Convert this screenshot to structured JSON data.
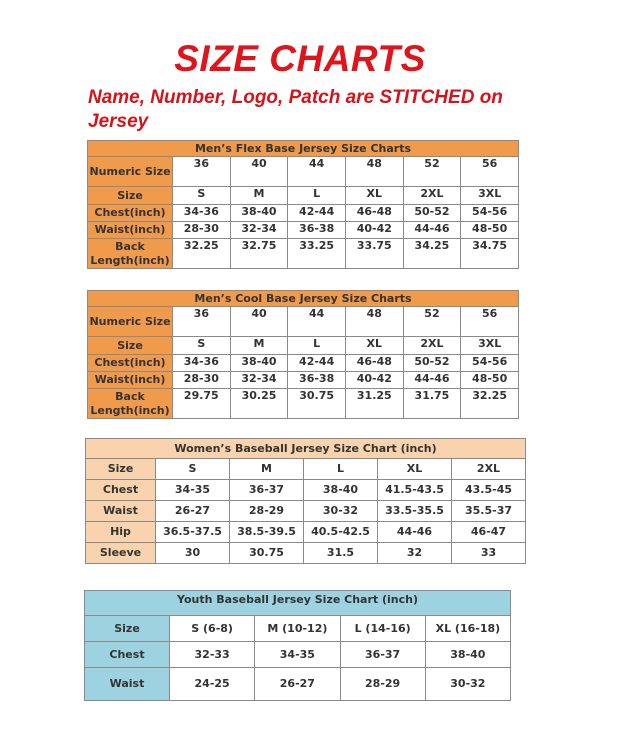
{
  "title": "SIZE CHARTS",
  "subtitle": "Name, Number, Logo, Patch are STITCHED on Jersey",
  "colors": {
    "title_red": "#e0141b",
    "mens_header": "#f09a4c",
    "womens_header": "#f8d3ad",
    "youth_header": "#9dd3e1"
  },
  "tables": [
    {
      "caption": "Men’s Flex Base Jersey Size Charts",
      "rows": [
        {
          "label": "Numeric Size",
          "values": [
            "36",
            "40",
            "44",
            "48",
            "52",
            "56"
          ]
        },
        {
          "label": "Size",
          "values": [
            "S",
            "M",
            "L",
            "XL",
            "2XL",
            "3XL"
          ]
        },
        {
          "label": "Chest(inch)",
          "values": [
            "34-36",
            "38-40",
            "42-44",
            "46-48",
            "50-52",
            "54-56"
          ]
        },
        {
          "label": "Waist(inch)",
          "values": [
            "28-30",
            "32-34",
            "36-38",
            "40-42",
            "44-46",
            "48-50"
          ]
        },
        {
          "label": "Back Length(inch)",
          "values": [
            "32.25",
            "32.75",
            "33.25",
            "33.75",
            "34.25",
            "34.75"
          ]
        }
      ]
    },
    {
      "caption": "Men’s Cool Base Jersey Size Charts",
      "rows": [
        {
          "label": "Numeric Size",
          "values": [
            "36",
            "40",
            "44",
            "48",
            "52",
            "56"
          ]
        },
        {
          "label": "Size",
          "values": [
            "S",
            "M",
            "L",
            "XL",
            "2XL",
            "3XL"
          ]
        },
        {
          "label": "Chest(inch)",
          "values": [
            "34-36",
            "38-40",
            "42-44",
            "46-48",
            "50-52",
            "54-56"
          ]
        },
        {
          "label": "Waist(inch)",
          "values": [
            "28-30",
            "32-34",
            "36-38",
            "40-42",
            "44-46",
            "48-50"
          ]
        },
        {
          "label": "Back Length(inch)",
          "values": [
            "29.75",
            "30.25",
            "30.75",
            "31.25",
            "31.75",
            "32.25"
          ]
        }
      ]
    },
    {
      "caption": "Women’s Baseball Jersey Size Chart (inch)",
      "rows": [
        {
          "label": "Size",
          "values": [
            "S",
            "M",
            "L",
            "XL",
            "2XL"
          ]
        },
        {
          "label": "Chest",
          "values": [
            "34-35",
            "36-37",
            "38-40",
            "41.5-43.5",
            "43.5-45"
          ]
        },
        {
          "label": "Waist",
          "values": [
            "26-27",
            "28-29",
            "30-32",
            "33.5-35.5",
            "35.5-37"
          ]
        },
        {
          "label": "Hip",
          "values": [
            "36.5-37.5",
            "38.5-39.5",
            "40.5-42.5",
            "44-46",
            "46-47"
          ]
        },
        {
          "label": "Sleeve",
          "values": [
            "30",
            "30.75",
            "31.5",
            "32",
            "33"
          ]
        }
      ]
    },
    {
      "caption": "Youth Baseball Jersey Size Chart (inch)",
      "rows": [
        {
          "label": "Size",
          "values": [
            "S (6-8)",
            "M (10-12)",
            "L (14-16)",
            "XL (16-18)"
          ]
        },
        {
          "label": "Chest",
          "values": [
            "32-33",
            "34-35",
            "36-37",
            "38-40"
          ]
        },
        {
          "label": "Waist",
          "values": [
            "24-25",
            "26-27",
            "28-29",
            "30-32"
          ]
        }
      ]
    }
  ]
}
